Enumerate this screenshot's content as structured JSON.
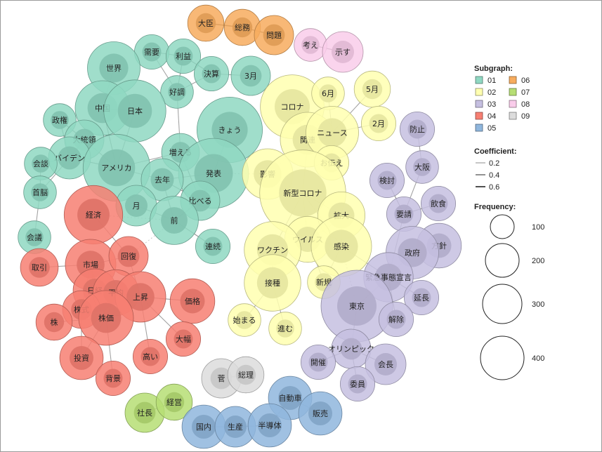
{
  "chart_data": {
    "type": "network",
    "title": "",
    "legend": {
      "subgraph_title": "Subgraph:",
      "subgraphs": [
        {
          "id": "01",
          "color": "#8fd8c2"
        },
        {
          "id": "02",
          "color": "#ffffb0"
        },
        {
          "id": "03",
          "color": "#c5bfe0"
        },
        {
          "id": "04",
          "color": "#f77f72"
        },
        {
          "id": "05",
          "color": "#8fb6dd"
        },
        {
          "id": "06",
          "color": "#f7ac5e"
        },
        {
          "id": "07",
          "color": "#b6de74"
        },
        {
          "id": "08",
          "color": "#f9ccea"
        },
        {
          "id": "09",
          "color": "#dcdcdc"
        }
      ],
      "coefficient_title": "Coefficient:",
      "coefficients": [
        "0.2",
        "0.4",
        "0.6"
      ],
      "frequency_title": "Frequency:",
      "frequencies": [
        "100",
        "200",
        "300",
        "400"
      ]
    },
    "nodes": [
      {
        "id": "大臣",
        "group": "06",
        "freq": 45
      },
      {
        "id": "総務",
        "group": "06",
        "freq": 45
      },
      {
        "id": "問題",
        "group": "06",
        "freq": 55
      },
      {
        "id": "考え",
        "group": "08",
        "freq": 35
      },
      {
        "id": "示す",
        "group": "08",
        "freq": 60
      },
      {
        "id": "需要",
        "group": "01",
        "freq": 40
      },
      {
        "id": "利益",
        "group": "01",
        "freq": 40
      },
      {
        "id": "決算",
        "group": "01",
        "freq": 40
      },
      {
        "id": "3月",
        "group": "01",
        "freq": 55
      },
      {
        "id": "好調",
        "group": "01",
        "freq": 35
      },
      {
        "id": "世界",
        "group": "01",
        "freq": 110
      },
      {
        "id": "中国",
        "group": "01",
        "freq": 120
      },
      {
        "id": "日本",
        "group": "01",
        "freq": 160
      },
      {
        "id": "きょう",
        "group": "01",
        "freq": 180
      },
      {
        "id": "政権",
        "group": "01",
        "freq": 35
      },
      {
        "id": "大統領",
        "group": "01",
        "freq": 55
      },
      {
        "id": "バイデン",
        "group": "01",
        "freq": 65
      },
      {
        "id": "会談",
        "group": "01",
        "freq": 35
      },
      {
        "id": "アメリカ",
        "group": "01",
        "freq": 190
      },
      {
        "id": "増える",
        "group": "01",
        "freq": 50
      },
      {
        "id": "発表",
        "group": "01",
        "freq": 210
      },
      {
        "id": "去年",
        "group": "01",
        "freq": 65
      },
      {
        "id": "首脳",
        "group": "01",
        "freq": 35
      },
      {
        "id": "月",
        "group": "01",
        "freq": 60
      },
      {
        "id": "比べる",
        "group": "01",
        "freq": 55
      },
      {
        "id": "前",
        "group": "01",
        "freq": 90
      },
      {
        "id": "会議",
        "group": "01",
        "freq": 35
      },
      {
        "id": "連続",
        "group": "01",
        "freq": 40
      },
      {
        "id": "コロナ",
        "group": "02",
        "freq": 170
      },
      {
        "id": "6月",
        "group": "02",
        "freq": 35
      },
      {
        "id": "5月",
        "group": "02",
        "freq": 45
      },
      {
        "id": "関連",
        "group": "02",
        "freq": 120
      },
      {
        "id": "ニュース",
        "group": "02",
        "freq": 110
      },
      {
        "id": "2月",
        "group": "02",
        "freq": 40
      },
      {
        "id": "お伝え",
        "group": "02",
        "freq": 40
      },
      {
        "id": "影響",
        "group": "02",
        "freq": 100
      },
      {
        "id": "新型コロナ",
        "group": "02",
        "freq": 330
      },
      {
        "id": "拡大",
        "group": "02",
        "freq": 85
      },
      {
        "id": "ウイルス",
        "group": "02",
        "freq": 80
      },
      {
        "id": "ワクチン",
        "group": "02",
        "freq": 130
      },
      {
        "id": "感染",
        "group": "02",
        "freq": 150
      },
      {
        "id": "接種",
        "group": "02",
        "freq": 130
      },
      {
        "id": "新規",
        "group": "02",
        "freq": 35
      },
      {
        "id": "始まる",
        "group": "02",
        "freq": 35
      },
      {
        "id": "進む",
        "group": "02",
        "freq": 35
      },
      {
        "id": "防止",
        "group": "03",
        "freq": 40
      },
      {
        "id": "大阪",
        "group": "03",
        "freq": 35
      },
      {
        "id": "検討",
        "group": "03",
        "freq": 40
      },
      {
        "id": "飲食",
        "group": "03",
        "freq": 40
      },
      {
        "id": "要請",
        "group": "03",
        "freq": 40
      },
      {
        "id": "方針",
        "group": "03",
        "freq": 75
      },
      {
        "id": "政府",
        "group": "03",
        "freq": 110
      },
      {
        "id": "緊急事態宣言",
        "group": "03",
        "freq": 95
      },
      {
        "id": "延長",
        "group": "03",
        "freq": 40
      },
      {
        "id": "東京",
        "group": "03",
        "freq": 220
      },
      {
        "id": "解除",
        "group": "03",
        "freq": 40
      },
      {
        "id": "オリンピック",
        "group": "03",
        "freq": 55
      },
      {
        "id": "開催",
        "group": "03",
        "freq": 40
      },
      {
        "id": "会長",
        "group": "03",
        "freq": 60
      },
      {
        "id": "委員",
        "group": "03",
        "freq": 40
      },
      {
        "id": "経済",
        "group": "04",
        "freq": 140
      },
      {
        "id": "市場",
        "group": "04",
        "freq": 100
      },
      {
        "id": "回復",
        "group": "04",
        "freq": 55
      },
      {
        "id": "取引",
        "group": "04",
        "freq": 50
      },
      {
        "id": "日経",
        "group": "04",
        "freq": 70
      },
      {
        "id": "平均",
        "group": "04",
        "freq": 80
      },
      {
        "id": "上昇",
        "group": "04",
        "freq": 100
      },
      {
        "id": "価格",
        "group": "04",
        "freq": 75
      },
      {
        "id": "株式",
        "group": "04",
        "freq": 50
      },
      {
        "id": "株価",
        "group": "04",
        "freq": 120
      },
      {
        "id": "株",
        "group": "04",
        "freq": 45
      },
      {
        "id": "大幅",
        "group": "04",
        "freq": 40
      },
      {
        "id": "投資",
        "group": "04",
        "freq": 70
      },
      {
        "id": "高い",
        "group": "04",
        "freq": 40
      },
      {
        "id": "背景",
        "group": "04",
        "freq": 40
      },
      {
        "id": "菅",
        "group": "09",
        "freq": 55
      },
      {
        "id": "総理",
        "group": "09",
        "freq": 45
      },
      {
        "id": "社長",
        "group": "07",
        "freq": 55
      },
      {
        "id": "経営",
        "group": "07",
        "freq": 45
      },
      {
        "id": "自動車",
        "group": "05",
        "freq": 70
      },
      {
        "id": "販売",
        "group": "05",
        "freq": 70
      },
      {
        "id": "国内",
        "group": "05",
        "freq": 70
      },
      {
        "id": "生産",
        "group": "05",
        "freq": 60
      },
      {
        "id": "半導体",
        "group": "05",
        "freq": 70
      }
    ],
    "edges": [
      [
        "大臣",
        "総務",
        0.5
      ],
      [
        "総務",
        "問題",
        0.5
      ],
      [
        "考え",
        "示す",
        0.5
      ],
      [
        "需要",
        "利益",
        0.25
      ],
      [
        "利益",
        "決算",
        0.35
      ],
      [
        "決算",
        "3月",
        0.25
      ],
      [
        "利益",
        "好調",
        0.25
      ],
      [
        "需要",
        "好調",
        0.2
      ],
      [
        "決算",
        "好調",
        0.2
      ],
      [
        "好調",
        "増える",
        0.2
      ],
      [
        "世界",
        "中国",
        0.2
      ],
      [
        "中国",
        "日本",
        0.3
      ],
      [
        "中国",
        "アメリカ",
        0.3
      ],
      [
        "日本",
        "アメリカ",
        0.25
      ],
      [
        "きょう",
        "発表",
        0.3
      ],
      [
        "政権",
        "大統領",
        0.3
      ],
      [
        "政権",
        "バイデン",
        0.3
      ],
      [
        "大統領",
        "バイデン",
        0.6
      ],
      [
        "バイデン",
        "アメリカ",
        0.3
      ],
      [
        "大統領",
        "アメリカ",
        0.25
      ],
      [
        "会談",
        "バイデン",
        0.25
      ],
      [
        "会談",
        "首脳",
        0.25
      ],
      [
        "首脳",
        "バイデン",
        0.2
      ],
      [
        "首脳",
        "会議",
        0.2
      ],
      [
        "アメリカ",
        "去年",
        0.2
      ],
      [
        "アメリカ",
        "増える",
        0.2
      ],
      [
        "増える",
        "比べる",
        0.3
      ],
      [
        "去年",
        "比べる",
        0.3
      ],
      [
        "去年",
        "前",
        0.25
      ],
      [
        "月",
        "前",
        0.25
      ],
      [
        "比べる",
        "前",
        0.4
      ],
      [
        "前",
        "連続",
        0.25
      ],
      [
        "発表",
        "比べる",
        0.2
      ],
      [
        "発表",
        "去年",
        0.2
      ],
      [
        "コロナ",
        "関連",
        0.3
      ],
      [
        "コロナ",
        "ニュース",
        0.3
      ],
      [
        "関連",
        "ニュース",
        0.5
      ],
      [
        "6月",
        "ニュース",
        0.2
      ],
      [
        "5月",
        "ニュース",
        0.2
      ],
      [
        "2月",
        "ニュース",
        0.2
      ],
      [
        "ニュース",
        "お伝え",
        0.3
      ],
      [
        "関連",
        "新型コロナ",
        0.25
      ],
      [
        "影響",
        "新型コロナ",
        0.3
      ],
      [
        "新型コロナ",
        "拡大",
        0.3
      ],
      [
        "新型コロナ",
        "感染",
        0.3
      ],
      [
        "新型コロナ",
        "ウイルス",
        0.3
      ],
      [
        "新型コロナ",
        "ワクチン",
        0.25
      ],
      [
        "ウイルス",
        "感染",
        0.3
      ],
      [
        "拡大",
        "感染",
        0.35
      ],
      [
        "ワクチン",
        "接種",
        0.5
      ],
      [
        "ウイルス",
        "新規",
        0.2
      ],
      [
        "感染",
        "新規",
        0.2
      ],
      [
        "接種",
        "始まる",
        0.2
      ],
      [
        "接種",
        "進む",
        0.2
      ],
      [
        "防止",
        "大阪",
        0.2
      ],
      [
        "大阪",
        "要請",
        0.2
      ],
      [
        "検討",
        "要請",
        0.25
      ],
      [
        "飲食",
        "要請",
        0.25
      ],
      [
        "要請",
        "緊急事態宣言",
        0.2
      ],
      [
        "政府",
        "方針",
        0.25
      ],
      [
        "政府",
        "緊急事態宣言",
        0.2
      ],
      [
        "緊急事態宣言",
        "延長",
        0.25
      ],
      [
        "緊急事態宣言",
        "解除",
        0.25
      ],
      [
        "緊急事態宣言",
        "東京",
        0.2
      ],
      [
        "緊急事態宣言",
        "感染",
        0.2
      ],
      [
        "東京",
        "オリンピック",
        0.25
      ],
      [
        "開催",
        "オリンピック",
        0.25
      ],
      [
        "オリンピック",
        "会長",
        0.25
      ],
      [
        "オリンピック",
        "委員",
        0.25
      ],
      [
        "経済",
        "回復",
        0.2
      ],
      [
        "市場",
        "回復",
        0.2
      ],
      [
        "取引",
        "市場",
        0.2
      ],
      [
        "市場",
        "日経",
        0.3
      ],
      [
        "市場",
        "株価",
        0.3
      ],
      [
        "日経",
        "平均",
        0.6
      ],
      [
        "平均",
        "株価",
        0.45
      ],
      [
        "日経",
        "株価",
        0.45
      ],
      [
        "平均",
        "上昇",
        0.3
      ],
      [
        "株価",
        "上昇",
        0.3
      ],
      [
        "上昇",
        "価格",
        0.25
      ],
      [
        "上昇",
        "大幅",
        0.2
      ],
      [
        "上昇",
        "高い",
        0.2
      ],
      [
        "株式",
        "株価",
        0.3
      ],
      [
        "株式",
        "市場",
        0.3
      ],
      [
        "株",
        "株価",
        0.25
      ],
      [
        "株価",
        "投資",
        0.2
      ],
      [
        "株価",
        "背景",
        0.2
      ],
      [
        "回復",
        "上昇",
        0.2
      ],
      [
        "日経",
        "株式",
        0.3
      ],
      [
        "株式",
        "投資",
        0.2
      ],
      [
        "菅",
        "総理",
        0.6
      ],
      [
        "社長",
        "経営",
        0.3
      ],
      [
        "自動車",
        "販売",
        0.3
      ],
      [
        "自動車",
        "半導体",
        0.25
      ],
      [
        "国内",
        "生産",
        0.3
      ],
      [
        "生産",
        "半導体",
        0.3
      ]
    ],
    "dashed_edges": [
      [
        "発表",
        "影響"
      ],
      [
        "前",
        "経済"
      ],
      [
        "前",
        "回復"
      ],
      [
        "東京",
        "感染"
      ],
      [
        "関連",
        "影響"
      ]
    ]
  }
}
